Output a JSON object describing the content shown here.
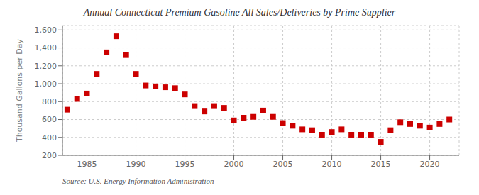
{
  "chart_data": {
    "type": "scatter",
    "title": "Annual Connecticut Premium Gasoline All Sales/Deliveries by Prime Supplier",
    "y_label": "Thousand Gallons per Day",
    "source": "Source: U.S. Energy Information Administration",
    "x": [
      1983,
      1984,
      1985,
      1986,
      1987,
      1988,
      1989,
      1990,
      1991,
      1992,
      1993,
      1994,
      1995,
      1996,
      1997,
      1998,
      1999,
      2000,
      2001,
      2002,
      2003,
      2004,
      2005,
      2006,
      2007,
      2008,
      2009,
      2010,
      2011,
      2012,
      2013,
      2014,
      2015,
      2016,
      2017,
      2018,
      2019,
      2020,
      2021,
      2022
    ],
    "values": [
      710,
      830,
      890,
      1110,
      1350,
      1530,
      1320,
      1110,
      980,
      970,
      960,
      950,
      880,
      750,
      690,
      750,
      730,
      590,
      620,
      630,
      700,
      630,
      560,
      530,
      490,
      480,
      430,
      460,
      490,
      430,
      430,
      430,
      350,
      480,
      570,
      550,
      530,
      510,
      550,
      600
    ],
    "color": "#cc0000",
    "marker": "square",
    "xlim": [
      1982.5,
      2023
    ],
    "xticks": [
      1985,
      1990,
      1995,
      2000,
      2005,
      2010,
      2015,
      2020
    ],
    "ylim": [
      200,
      1650
    ],
    "yticks": [
      200,
      400,
      600,
      800,
      {
        "value": 1000,
        "label": "1,000"
      },
      {
        "value": 1200,
        "label": "1,200"
      },
      {
        "value": 1400,
        "label": "1,400"
      },
      {
        "value": 1600,
        "label": "1,600"
      }
    ],
    "grid": true
  }
}
